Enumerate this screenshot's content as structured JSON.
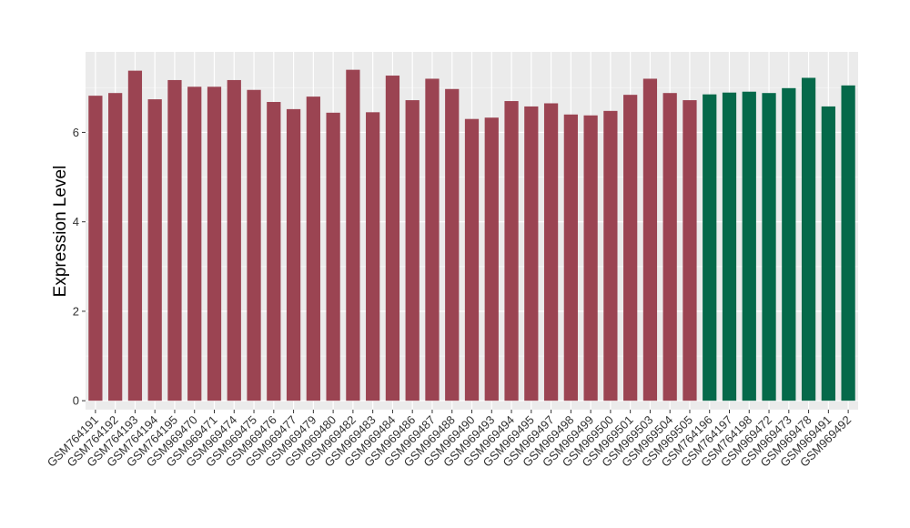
{
  "chart_data": {
    "type": "bar",
    "ylabel": "Expression Level",
    "xlabel": "",
    "ylim": [
      -0.2,
      7.8
    ],
    "yticks": [
      0,
      2,
      4,
      6
    ],
    "grid": true,
    "legend": "none",
    "colors": {
      "group_a": "#9b4452",
      "group_b": "#05694a",
      "panel_bg": "#ebebeb",
      "grid_major": "#ffffff"
    },
    "categories": [
      "GSM764191",
      "GSM764192",
      "GSM764193",
      "GSM764194",
      "GSM764195",
      "GSM969470",
      "GSM969471",
      "GSM969474",
      "GSM969475",
      "GSM969476",
      "GSM969477",
      "GSM969479",
      "GSM969480",
      "GSM969482",
      "GSM969483",
      "GSM969484",
      "GSM969486",
      "GSM969487",
      "GSM969488",
      "GSM969490",
      "GSM969493",
      "GSM969494",
      "GSM969495",
      "GSM969497",
      "GSM969498",
      "GSM969499",
      "GSM969500",
      "GSM969501",
      "GSM969503",
      "GSM969504",
      "GSM969505",
      "GSM764196",
      "GSM764197",
      "GSM764198",
      "GSM969472",
      "GSM969473",
      "GSM969478",
      "GSM969491",
      "GSM969492"
    ],
    "values": [
      6.82,
      6.88,
      7.38,
      6.74,
      7.17,
      7.02,
      7.02,
      7.17,
      6.95,
      6.68,
      6.52,
      6.8,
      6.44,
      7.4,
      6.45,
      7.27,
      6.72,
      7.2,
      6.97,
      6.3,
      6.33,
      6.7,
      6.58,
      6.65,
      6.4,
      6.38,
      6.48,
      6.84,
      7.2,
      6.88,
      6.72,
      6.85,
      6.89,
      6.91,
      6.88,
      6.99,
      7.22,
      6.58,
      7.05
    ],
    "groups": [
      "a",
      "a",
      "a",
      "a",
      "a",
      "a",
      "a",
      "a",
      "a",
      "a",
      "a",
      "a",
      "a",
      "a",
      "a",
      "a",
      "a",
      "a",
      "a",
      "a",
      "a",
      "a",
      "a",
      "a",
      "a",
      "a",
      "a",
      "a",
      "a",
      "a",
      "a",
      "b",
      "b",
      "b",
      "b",
      "b",
      "b",
      "b",
      "b"
    ]
  }
}
